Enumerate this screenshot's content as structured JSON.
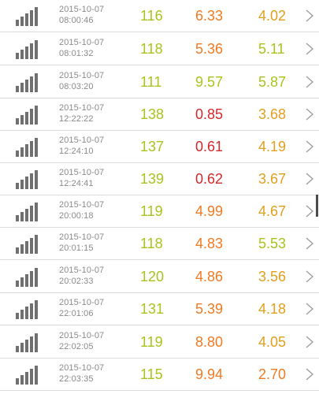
{
  "colors": {
    "green": "#a8c41c",
    "orange": "#f07a22",
    "red": "#d2282c",
    "amber": "#e0a01e",
    "signal": "#707070",
    "text_muted": "#8a8a8a",
    "divider": "#dcdcdc"
  },
  "icons": {
    "signal": "signal-strength-icon",
    "chevron": "chevron-right-icon"
  },
  "rows": [
    {
      "date": "2015-10-07",
      "time": "08:00:46",
      "v1": "116",
      "v2": "6.33",
      "v3": "4.02",
      "c1": "green",
      "c2": "orange",
      "c3": "amber"
    },
    {
      "date": "2015-10-07",
      "time": "08:01:32",
      "v1": "118",
      "v2": "5.36",
      "v3": "5.11",
      "c1": "green",
      "c2": "orange",
      "c3": "green"
    },
    {
      "date": "2015-10-07",
      "time": "08:03:20",
      "v1": "111",
      "v2": "9.57",
      "v3": "5.87",
      "c1": "green",
      "c2": "green",
      "c3": "green"
    },
    {
      "date": "2015-10-07",
      "time": "12:22:22",
      "v1": "138",
      "v2": "0.85",
      "v3": "3.68",
      "c1": "green",
      "c2": "red",
      "c3": "amber"
    },
    {
      "date": "2015-10-07",
      "time": "12:24:10",
      "v1": "137",
      "v2": "0.61",
      "v3": "4.19",
      "c1": "green",
      "c2": "red",
      "c3": "amber"
    },
    {
      "date": "2015-10-07",
      "time": "12:24:41",
      "v1": "139",
      "v2": "0.62",
      "v3": "3.67",
      "c1": "green",
      "c2": "red",
      "c3": "amber"
    },
    {
      "date": "2015-10-07",
      "time": "20:00:18",
      "v1": "119",
      "v2": "4.99",
      "v3": "4.67",
      "c1": "green",
      "c2": "orange",
      "c3": "amber"
    },
    {
      "date": "2015-10-07",
      "time": "20:01:15",
      "v1": "118",
      "v2": "4.83",
      "v3": "5.53",
      "c1": "green",
      "c2": "orange",
      "c3": "green"
    },
    {
      "date": "2015-10-07",
      "time": "20:02:33",
      "v1": "120",
      "v2": "4.86",
      "v3": "3.56",
      "c1": "green",
      "c2": "orange",
      "c3": "amber"
    },
    {
      "date": "2015-10-07",
      "time": "22:01:06",
      "v1": "131",
      "v2": "5.39",
      "v3": "4.18",
      "c1": "green",
      "c2": "orange",
      "c3": "amber"
    },
    {
      "date": "2015-10-07",
      "time": "22:02:05",
      "v1": "119",
      "v2": "8.80",
      "v3": "4.05",
      "c1": "green",
      "c2": "orange",
      "c3": "amber"
    },
    {
      "date": "2015-10-07",
      "time": "22:03:35",
      "v1": "115",
      "v2": "9.94",
      "v3": "2.70",
      "c1": "green",
      "c2": "orange",
      "c3": "orange"
    }
  ]
}
